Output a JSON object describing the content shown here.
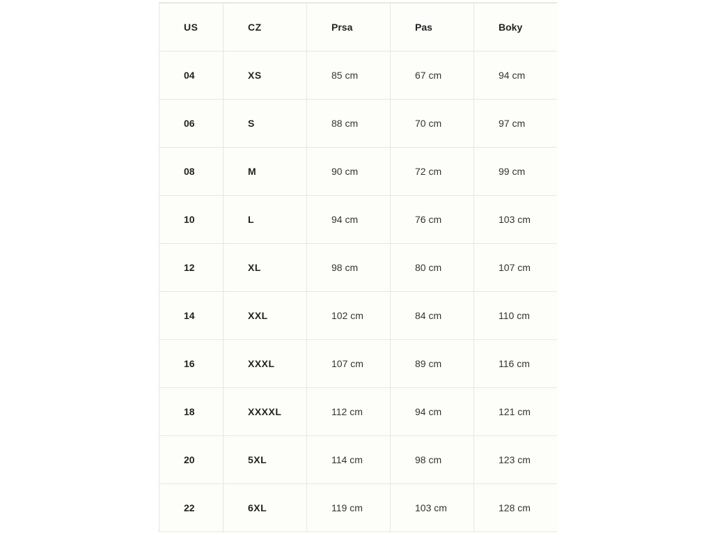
{
  "table": {
    "headers": [
      "US",
      "CZ",
      "Prsa",
      "Pas",
      "Boky"
    ],
    "rows": [
      [
        "04",
        "XS",
        "85 cm",
        "67 cm",
        "94 cm"
      ],
      [
        "06",
        "S",
        "88 cm",
        "70 cm",
        "97 cm"
      ],
      [
        "08",
        "M",
        "90 cm",
        "72 cm",
        "99 cm"
      ],
      [
        "10",
        "L",
        "94 cm",
        "76 cm",
        "103 cm"
      ],
      [
        "12",
        "XL",
        "98 cm",
        "80 cm",
        "107 cm"
      ],
      [
        "14",
        "XXL",
        "102 cm",
        "84 cm",
        "110 cm"
      ],
      [
        "16",
        "XXXL",
        "107 cm",
        "89 cm",
        "116 cm"
      ],
      [
        "18",
        "XXXXL",
        "112 cm",
        "94 cm",
        "121 cm"
      ],
      [
        "20",
        "5XL",
        "114 cm",
        "98 cm",
        "123 cm"
      ],
      [
        "22",
        "6XL",
        "119 cm",
        "103 cm",
        "128 cm"
      ]
    ]
  }
}
